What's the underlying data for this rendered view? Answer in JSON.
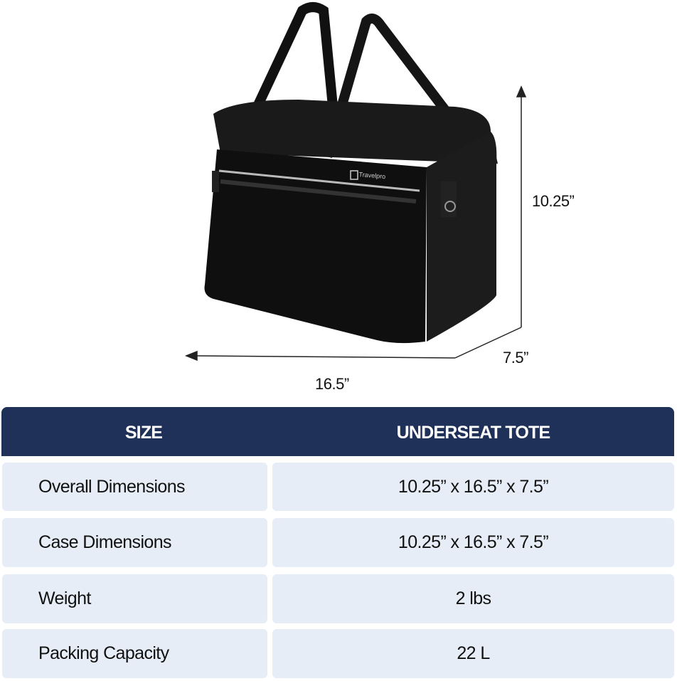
{
  "product_image": {
    "brand_logo_text": "Travelpro"
  },
  "dimensions": {
    "height": "10.25”",
    "width": "16.5”",
    "depth": "7.5”"
  },
  "table": {
    "headers": [
      "SIZE",
      "UNDERSEAT TOTE"
    ],
    "rows": [
      {
        "label": "Overall Dimensions",
        "value": "10.25” x 16.5” x 7.5”"
      },
      {
        "label": "Case Dimensions",
        "value": "10.25” x 16.5” x 7.5”"
      },
      {
        "label": "Weight",
        "value": "2 lbs"
      },
      {
        "label": "Packing Capacity",
        "value": "22 L"
      }
    ],
    "colors": {
      "header_bg": "#1f3158",
      "cell_bg": "#e6edf6"
    }
  }
}
